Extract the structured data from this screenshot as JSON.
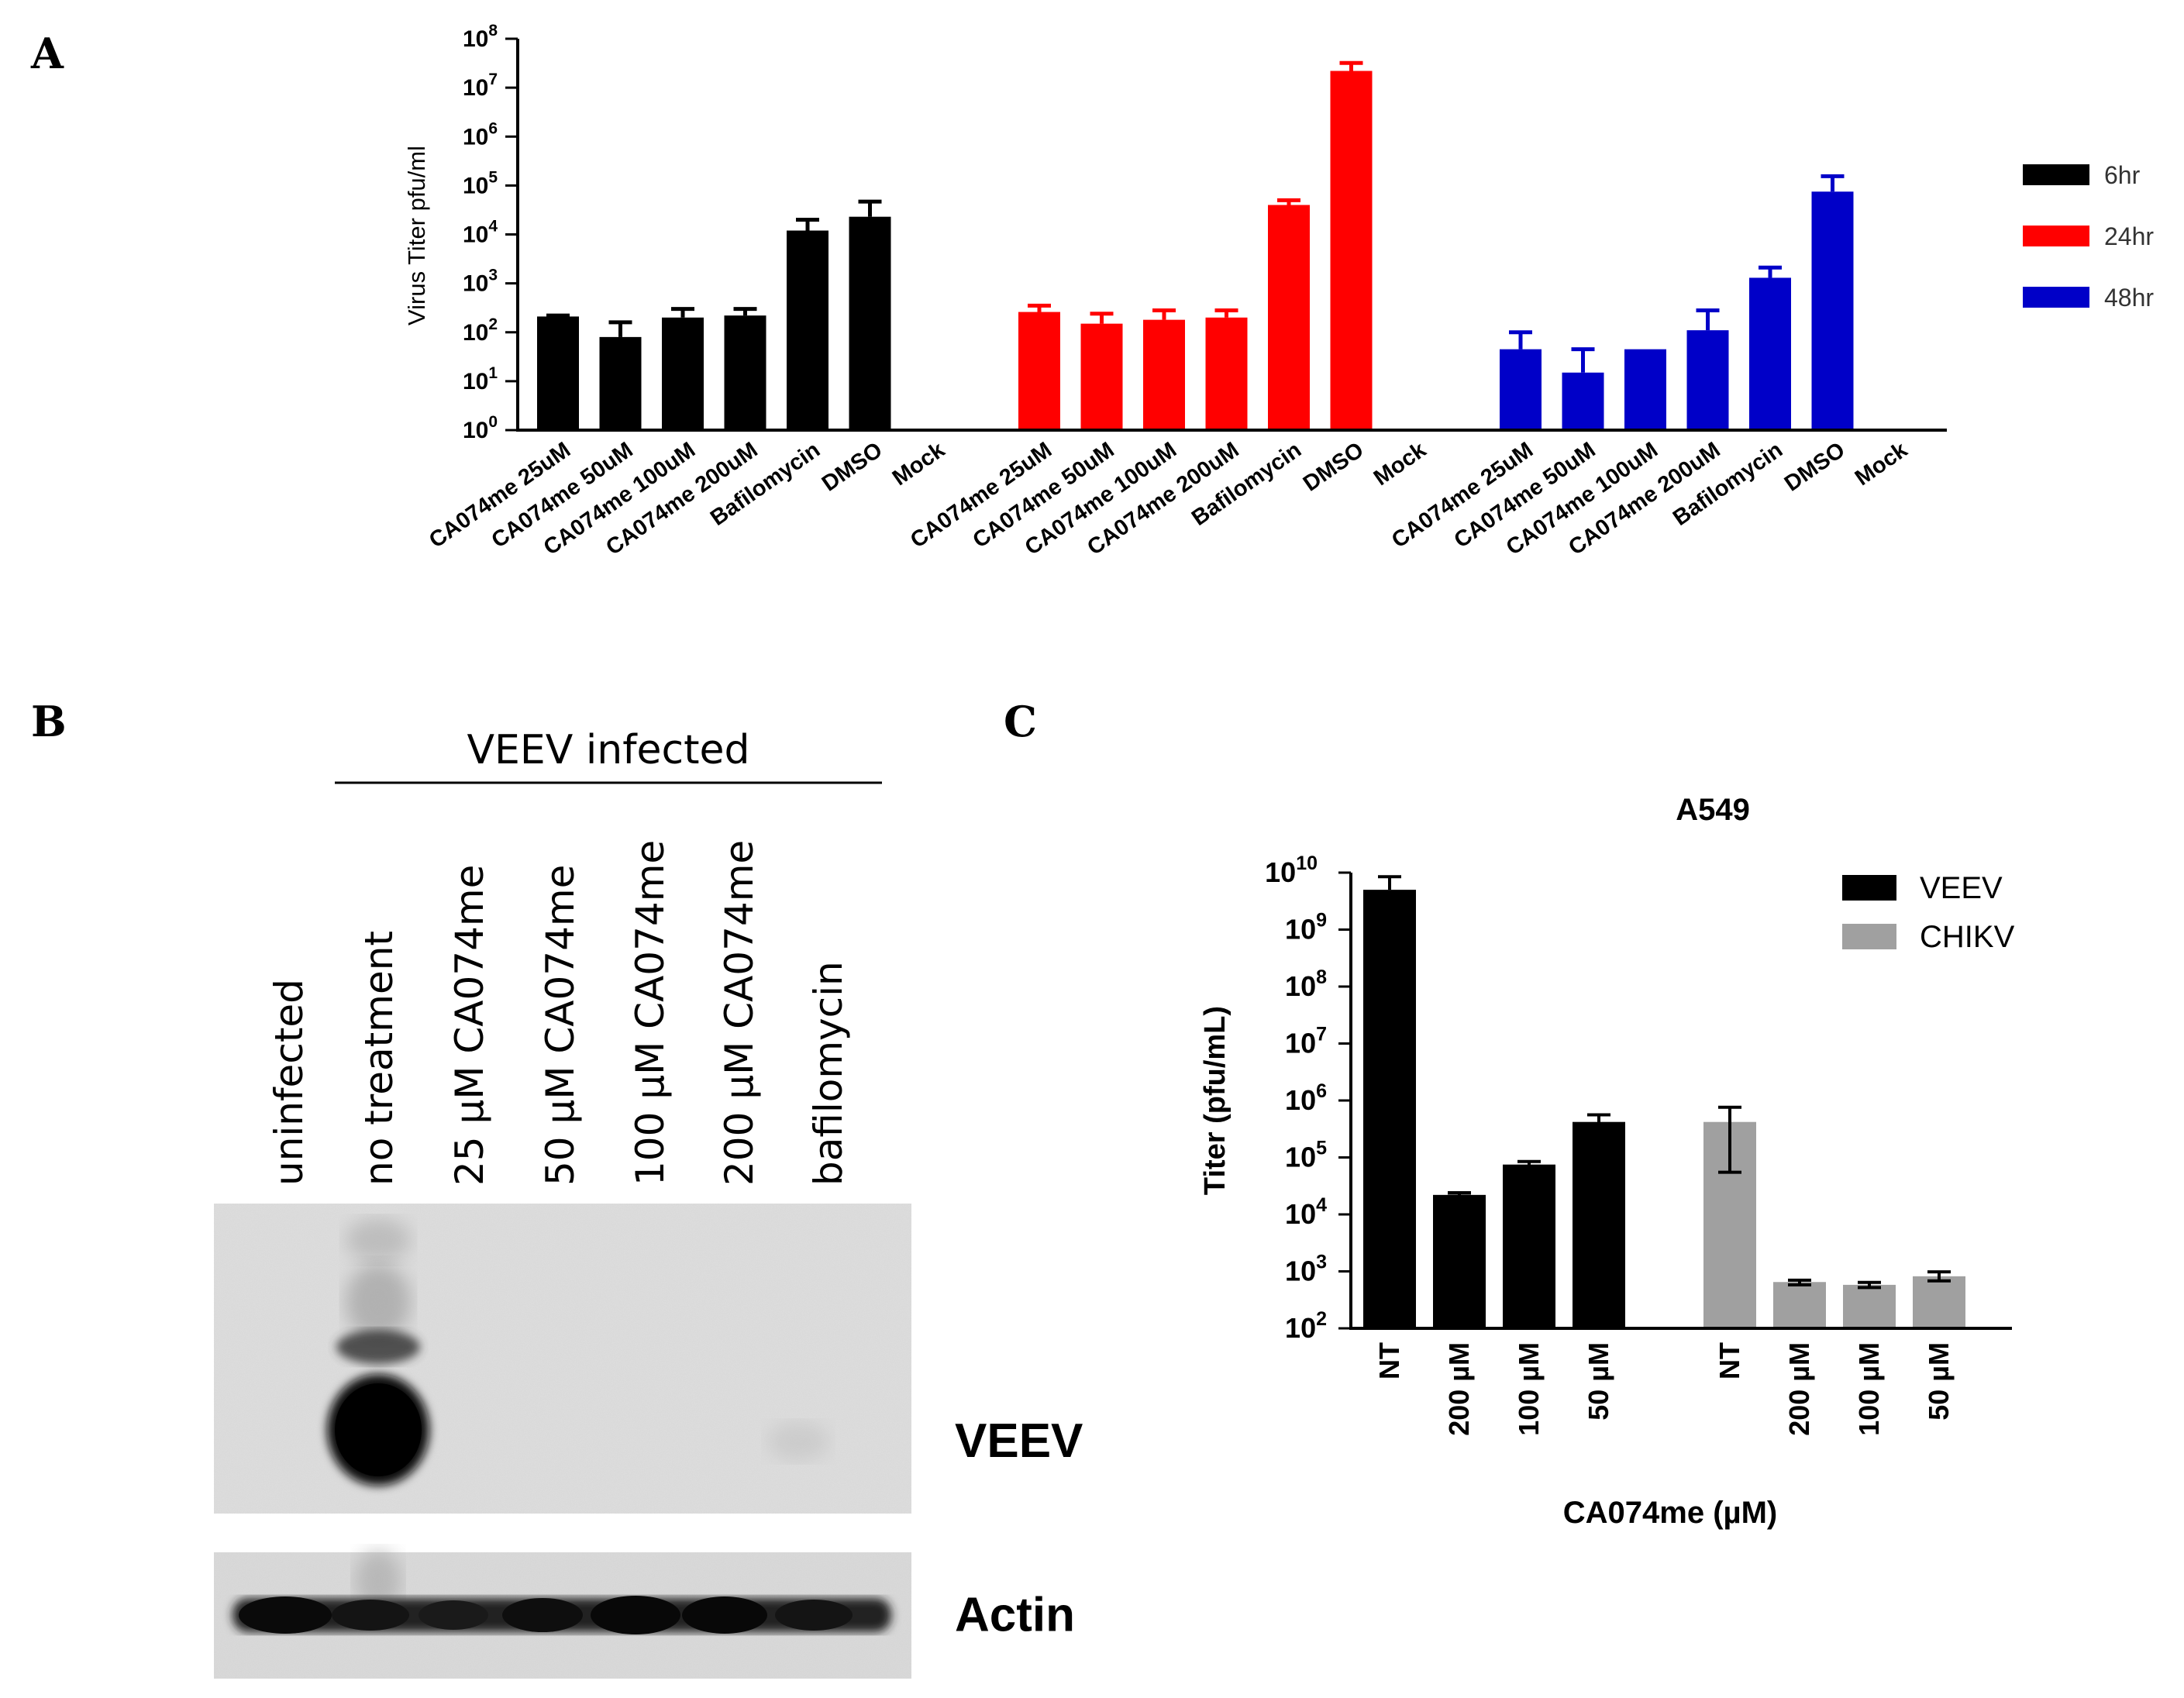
{
  "panels": {
    "a": "A",
    "b": "B",
    "c": "C"
  },
  "chart_data": [
    {
      "type": "bar",
      "panel": "A",
      "ylabel": "Virus Titer pfu/ml",
      "yscale": "log",
      "ylim": [
        1,
        100000000
      ],
      "ytick_exponents": [
        "0",
        "1",
        "2",
        "3",
        "4",
        "5",
        "6",
        "7",
        "8"
      ],
      "categories": [
        "CA074me 25uM",
        "CA074me 50uM",
        "CA074me 100uM",
        "CA074me 200uM",
        "Bafilomycin",
        "DMSO",
        "Mock"
      ],
      "legend_position": "right",
      "series": [
        {
          "name": "6hr",
          "color": "#000000",
          "values": [
            210,
            80,
            200,
            220,
            12000,
            23000,
            null
          ],
          "error": [
            220,
            160,
            300,
            300,
            20000,
            47000,
            null
          ]
        },
        {
          "name": "24hr",
          "color": "#ff0000",
          "values": [
            260,
            150,
            180,
            200,
            40000,
            22000000,
            null
          ],
          "error": [
            350,
            240,
            280,
            280,
            50000,
            32000000,
            null
          ]
        },
        {
          "name": "48hr",
          "color": "#0000c8",
          "values": [
            45,
            15,
            45,
            110,
            1300,
            75000,
            null
          ],
          "error": [
            100,
            45,
            45,
            280,
            2100,
            155000,
            null
          ]
        }
      ]
    },
    {
      "type": "blot",
      "panel": "B",
      "group_label": "VEEV infected",
      "lanes": [
        "uninfected",
        "no treatment",
        "25 µM CA074me",
        "50 µM CA074me",
        "100 µM CA074me",
        "200 µM CA074me",
        "bafilomycin"
      ],
      "bands": [
        "VEEV",
        "Actin"
      ]
    },
    {
      "type": "bar",
      "panel": "C",
      "title": "A549",
      "ylabel": "Titer  (pfu/mL)",
      "xlabel": "CA074me (µM)",
      "yscale": "log",
      "ylim": [
        100,
        10000000000
      ],
      "ytick_exponents": [
        "2",
        "3",
        "4",
        "5",
        "6",
        "7",
        "8",
        "9",
        "10"
      ],
      "categories": [
        "NT",
        "200 µM",
        "100 µM",
        "50 µM"
      ],
      "legend_position": "top-right",
      "series": [
        {
          "name": "VEEV",
          "color": "#000000",
          "values": [
            5000000000,
            22000,
            75000,
            420000
          ],
          "error_low": [
            5000000000,
            21000,
            70000,
            360000
          ],
          "error_high": [
            8500000000,
            24000,
            85000,
            560000
          ]
        },
        {
          "name": "CHIKV",
          "color": "#a0a0a0",
          "values": [
            420000,
            650,
            580,
            820
          ],
          "error_low": [
            55000,
            580,
            520,
            680
          ],
          "error_high": [
            760000,
            700,
            640,
            980
          ]
        }
      ]
    }
  ]
}
